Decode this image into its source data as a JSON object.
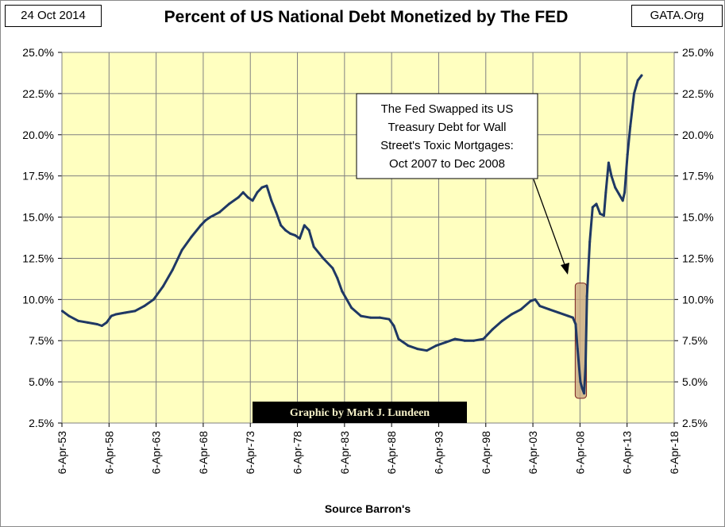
{
  "header": {
    "date": "24 Oct 2014",
    "title": "Percent of US National Debt Monetized by The FED",
    "source_site": "GATA.Org"
  },
  "credit": "Graphic by Mark J. Lundeen",
  "annotation_lines": [
    "The Fed Swapped its US",
    "Treasury Debt for Wall",
    "Street's Toxic Mortgages:",
    "Oct 2007 to Dec 2008"
  ],
  "colors": {
    "plot_bg": "#ffffc0",
    "line": "#1f3864",
    "highlight_fill": "#c8a882",
    "highlight_stroke": "#7a1f1f",
    "grid": "#808080"
  },
  "chart_data": {
    "type": "line",
    "title": "Percent of US National Debt Monetized by The FED",
    "xlabel": "Source Barron's",
    "ylabel": "",
    "x_unit": "year",
    "xlim": [
      1953.26,
      2018.26
    ],
    "ylim": [
      2.5,
      25.0
    ],
    "y_ticks": [
      "2.5%",
      "5.0%",
      "7.5%",
      "10.0%",
      "12.5%",
      "15.0%",
      "17.5%",
      "20.0%",
      "22.5%",
      "25.0%"
    ],
    "y_tick_values": [
      2.5,
      5.0,
      7.5,
      10.0,
      12.5,
      15.0,
      17.5,
      20.0,
      22.5,
      25.0
    ],
    "x_ticks": [
      "6-Apr-53",
      "6-Apr-58",
      "6-Apr-63",
      "6-Apr-68",
      "6-Apr-73",
      "6-Apr-78",
      "6-Apr-83",
      "6-Apr-88",
      "6-Apr-93",
      "6-Apr-98",
      "6-Apr-03",
      "6-Apr-08",
      "6-Apr-13",
      "6-Apr-18"
    ],
    "x_tick_values": [
      1953.26,
      1958.26,
      1963.26,
      1968.26,
      1973.26,
      1978.26,
      1983.26,
      1988.26,
      1993.26,
      1998.26,
      2003.26,
      2008.26,
      2013.26,
      2018.26
    ],
    "grid": true,
    "highlight_range": {
      "x": [
        2007.75,
        2008.95
      ],
      "y": [
        4.0,
        11.0
      ]
    },
    "series": [
      {
        "x": [
          1953.3,
          1954.0,
          1955.0,
          1956.0,
          1957.0,
          1957.5,
          1958.0,
          1958.5,
          1959.0,
          1960.0,
          1961.0,
          1962.0,
          1963.0,
          1964.0,
          1965.0,
          1966.0,
          1967.0,
          1968.0,
          1968.5,
          1969.0,
          1970.0,
          1971.0,
          1972.0,
          1972.5,
          1973.0,
          1973.5,
          1974.0,
          1974.5,
          1975.0,
          1975.5,
          1976.0,
          1976.5,
          1977.0,
          1977.5,
          1978.0,
          1978.5,
          1979.0,
          1979.5,
          1980.0,
          1981.0,
          1982.0,
          1982.5,
          1983.0,
          1984.0,
          1985.0,
          1986.0,
          1987.0,
          1988.0,
          1988.5,
          1989.0,
          1990.0,
          1991.0,
          1992.0,
          1993.0,
          1994.0,
          1995.0,
          1996.0,
          1997.0,
          1998.0,
          1999.0,
          2000.0,
          2001.0,
          2002.0,
          2003.0,
          2003.5,
          2004.0,
          2005.0,
          2006.0,
          2007.0,
          2007.5,
          2007.8,
          2008.0,
          2008.3,
          2008.5,
          2008.7,
          2008.85,
          2009.0,
          2009.3,
          2009.6,
          2010.0,
          2010.4,
          2010.8,
          2011.0,
          2011.3,
          2011.6,
          2012.0,
          2012.4,
          2012.8,
          2013.0,
          2013.3,
          2013.6,
          2014.0,
          2014.4,
          2014.8
        ],
        "y": [
          9.3,
          9.0,
          8.7,
          8.6,
          8.5,
          8.4,
          8.6,
          9.0,
          9.1,
          9.2,
          9.3,
          9.6,
          10.0,
          10.8,
          11.8,
          13.0,
          13.8,
          14.5,
          14.8,
          15.0,
          15.3,
          15.8,
          16.2,
          16.5,
          16.2,
          16.0,
          16.5,
          16.8,
          16.9,
          16.0,
          15.3,
          14.5,
          14.2,
          14.0,
          13.9,
          13.7,
          14.5,
          14.2,
          13.2,
          12.5,
          11.9,
          11.3,
          10.5,
          9.5,
          9.0,
          8.9,
          8.9,
          8.8,
          8.4,
          7.6,
          7.2,
          7.0,
          6.9,
          7.2,
          7.4,
          7.6,
          7.5,
          7.5,
          7.6,
          8.2,
          8.7,
          9.1,
          9.4,
          9.9,
          10.0,
          9.6,
          9.4,
          9.2,
          9.0,
          8.9,
          8.5,
          7.0,
          5.0,
          4.6,
          4.3,
          6.0,
          10.2,
          13.5,
          15.6,
          15.8,
          15.2,
          15.1,
          16.5,
          18.3,
          17.5,
          16.8,
          16.4,
          16.0,
          16.5,
          18.8,
          20.5,
          22.5,
          23.3,
          23.6
        ]
      }
    ]
  }
}
